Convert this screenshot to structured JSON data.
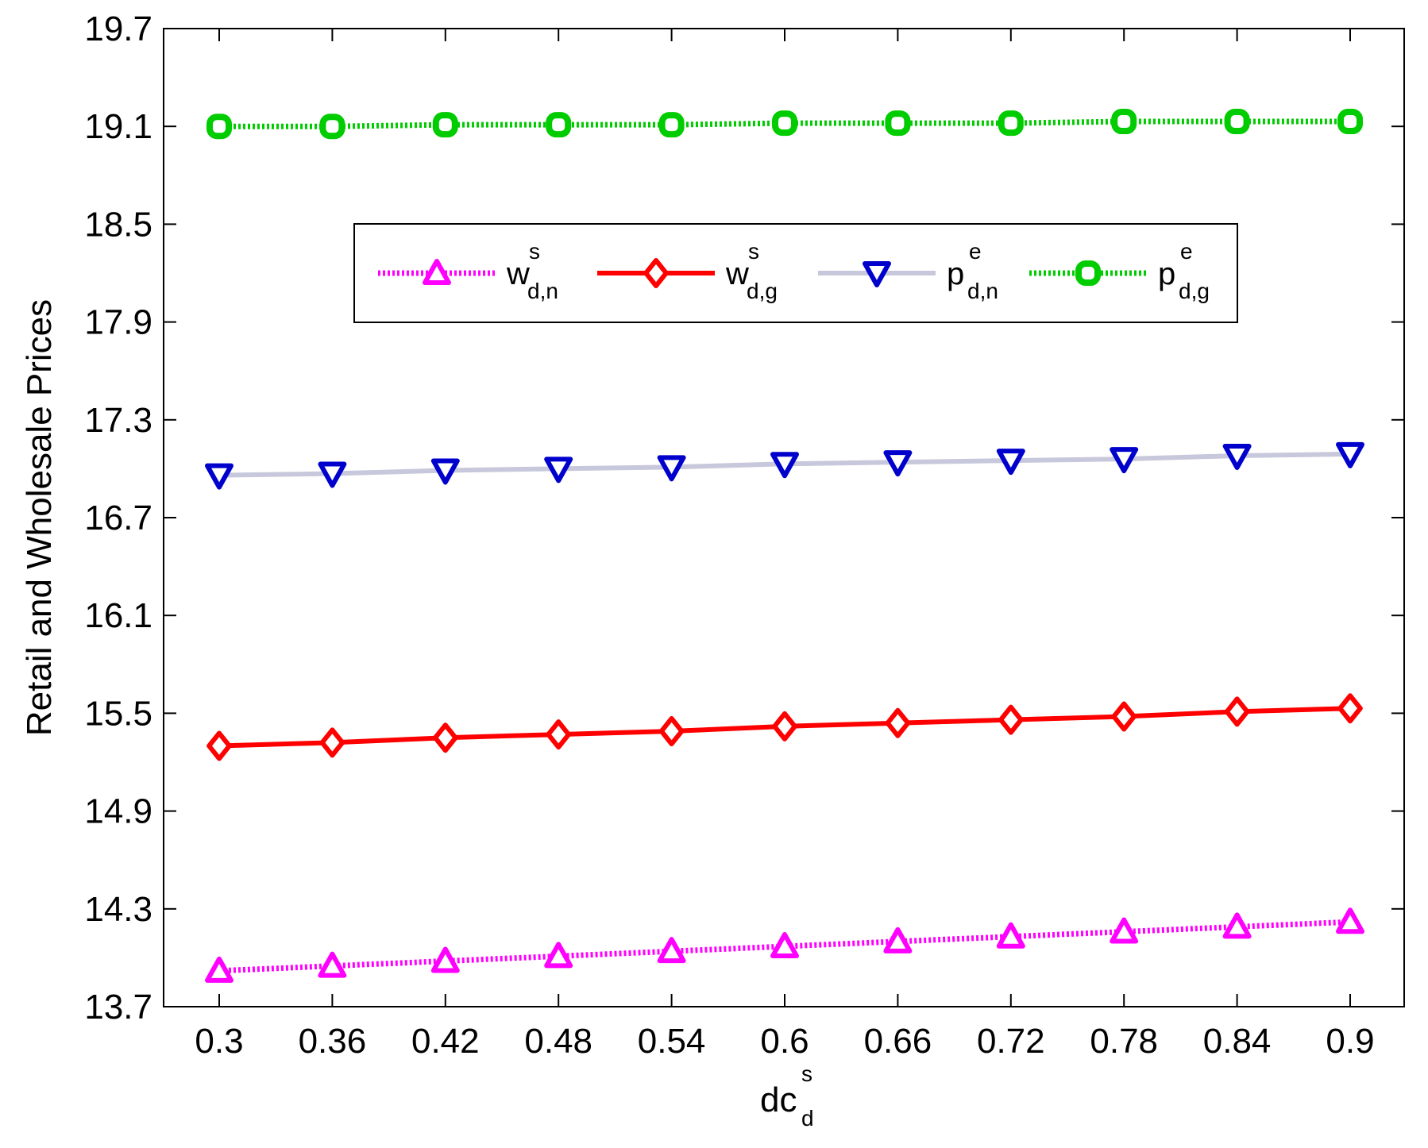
{
  "chart_data": {
    "type": "line",
    "x": [
      0.3,
      0.36,
      0.42,
      0.48,
      0.54,
      0.6,
      0.66,
      0.72,
      0.78,
      0.84,
      0.9
    ],
    "x_tick_labels": [
      "0.3",
      "0.36",
      "0.42",
      "0.48",
      "0.54",
      "0.6",
      "0.66",
      "0.72",
      "0.78",
      "0.84",
      "0.9"
    ],
    "y_ticks": [
      13.7,
      14.3,
      14.9,
      15.5,
      16.1,
      16.7,
      17.3,
      17.9,
      18.5,
      19.1,
      19.7
    ],
    "y_tick_labels": [
      "13.7",
      "14.3",
      "14.9",
      "15.5",
      "16.1",
      "16.7",
      "17.3",
      "17.9",
      "18.5",
      "19.1",
      "19.7"
    ],
    "ylim": [
      13.7,
      19.7
    ],
    "xlabel": {
      "base": "dc",
      "sup": "s",
      "sub": "d"
    },
    "ylabel": "Retail and Wholesale Prices",
    "legend_position": "upper-center",
    "grid": false,
    "series": [
      {
        "name": "w",
        "legend": {
          "base": "w",
          "sup": "s",
          "sub": "d,n"
        },
        "values": [
          13.92,
          13.95,
          13.98,
          14.01,
          14.04,
          14.07,
          14.1,
          14.13,
          14.16,
          14.19,
          14.22
        ],
        "color": "#ff00ff",
        "marker": "triangle-up",
        "line_style": "dotted"
      },
      {
        "name": "w",
        "legend": {
          "base": "w",
          "sup": "s",
          "sub": "d,g"
        },
        "values": [
          15.3,
          15.32,
          15.35,
          15.37,
          15.39,
          15.42,
          15.44,
          15.46,
          15.48,
          15.51,
          15.53
        ],
        "color": "#ff0000",
        "marker": "diamond",
        "line_style": "solid"
      },
      {
        "name": "p",
        "legend": {
          "base": "p",
          "sup": "e",
          "sub": "d,n"
        },
        "values": [
          16.96,
          16.97,
          16.99,
          17.0,
          17.01,
          17.03,
          17.04,
          17.05,
          17.06,
          17.08,
          17.09
        ],
        "color": "#0000cc",
        "line_color": "#c8c8dc",
        "marker": "triangle-down",
        "line_style": "solid"
      },
      {
        "name": "p",
        "legend": {
          "base": "p",
          "sup": "e",
          "sub": "d,g"
        },
        "values": [
          19.1,
          19.1,
          19.11,
          19.11,
          19.11,
          19.12,
          19.12,
          19.12,
          19.13,
          19.13,
          19.13
        ],
        "color": "#00cc00",
        "marker": "circle-square",
        "line_style": "dotted"
      }
    ]
  }
}
